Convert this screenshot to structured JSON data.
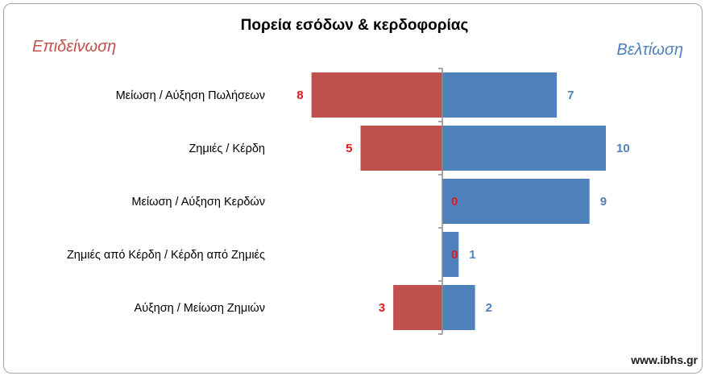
{
  "chart_data": {
    "type": "bar",
    "orientation": "horizontal-diverging",
    "title": "Πορεία εσόδων & κερδοφορίας",
    "left_label": "Επιδείνωση",
    "right_label": "Βελτίωση",
    "categories": [
      "Μείωση / Αύξηση Πωλήσεων",
      "Ζημιές / Κέρδη",
      "Μείωση / Αύξηση Κερδών",
      "Ζημιές από Κέρδη / Κέρδη από Ζημιές",
      "Αύξηση / Μείωση Ζημιών"
    ],
    "series": [
      {
        "name": "Επιδείνωση",
        "color": "#c0504d",
        "values": [
          8,
          5,
          0,
          0,
          3
        ]
      },
      {
        "name": "Βελτίωση",
        "color": "#4f81bd",
        "values": [
          7,
          10,
          9,
          1,
          2
        ]
      }
    ],
    "xlim": [
      -10,
      10
    ],
    "grid": false,
    "legend": "none"
  },
  "footer": {
    "watermark": "www.ibhs.gr"
  }
}
